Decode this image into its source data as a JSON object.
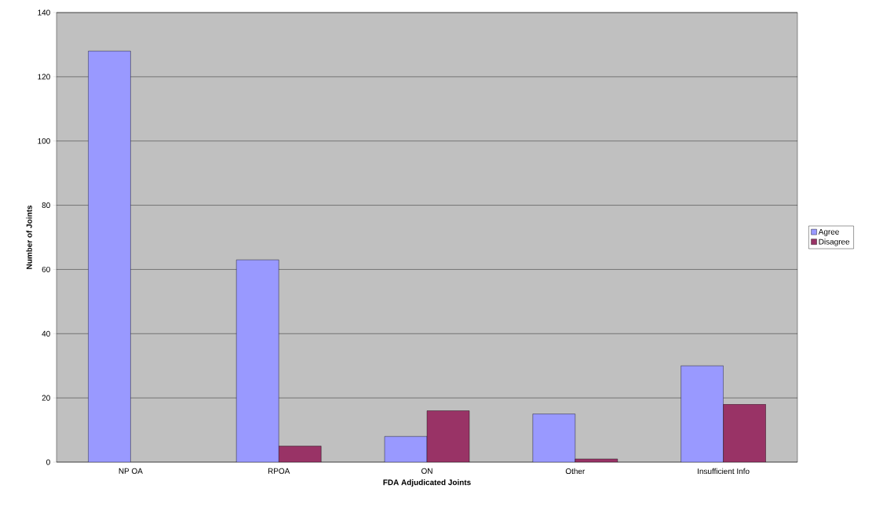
{
  "chart_data": {
    "type": "bar",
    "xlabel": "FDA Adjudicated Joints",
    "ylabel": "Number of Joints",
    "categories": [
      "NP OA",
      "RPOA",
      "ON",
      "Other",
      "Insufficient Info"
    ],
    "series": [
      {
        "name": "Agree",
        "color": "#9999ff",
        "values": [
          128,
          63,
          8,
          15,
          30
        ]
      },
      {
        "name": "Disagree",
        "color": "#993366",
        "values": [
          null,
          5,
          16,
          1,
          18
        ]
      }
    ],
    "ylim": [
      0,
      140
    ],
    "yticks": [
      0,
      20,
      40,
      60,
      80,
      100,
      120,
      140
    ],
    "grid": "y",
    "legend": "right"
  }
}
